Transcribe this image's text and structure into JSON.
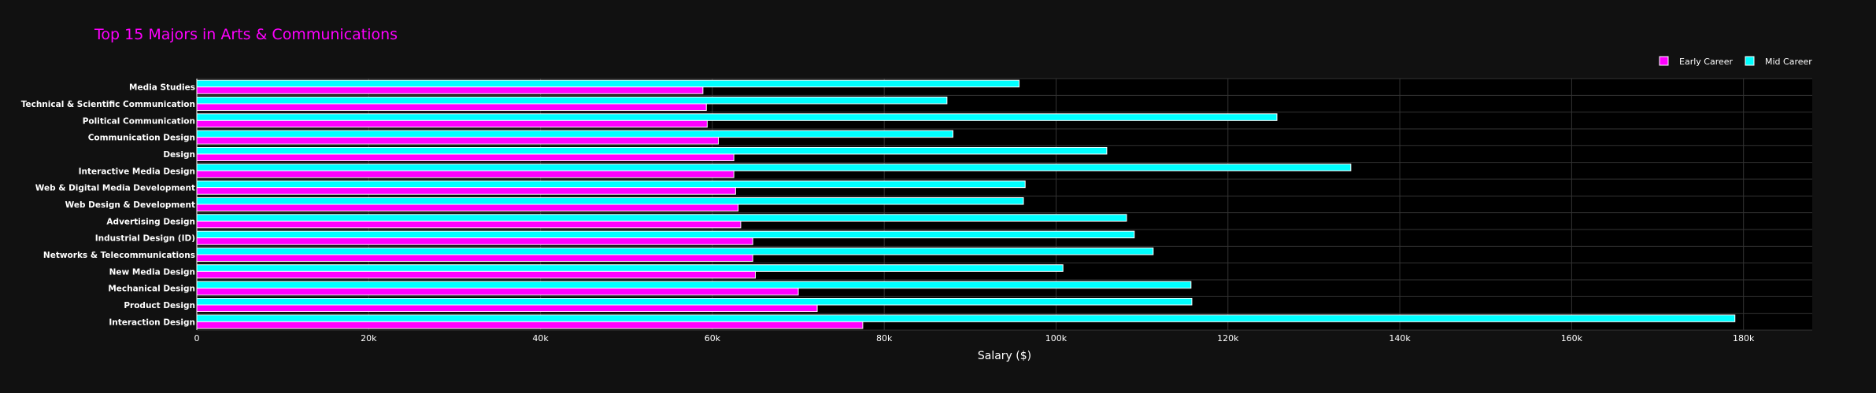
{
  "chart_data": {
    "type": "bar",
    "orientation": "horizontal",
    "title": "Top 15 Majors in Arts & Communications",
    "xlabel": "Salary ($)",
    "ylabel": "",
    "xlim": [
      0,
      188000
    ],
    "x_ticks": [
      0,
      20000,
      40000,
      60000,
      80000,
      100000,
      120000,
      140000,
      160000,
      180000
    ],
    "x_tick_labels": [
      "0",
      "20k",
      "40k",
      "60k",
      "80k",
      "100k",
      "120k",
      "140k",
      "160k",
      "180k"
    ],
    "grid": true,
    "legend_position": "top-right",
    "categories": [
      "Media Studies",
      "Technical & Scientific Communication",
      "Political Communication",
      "Communication Design",
      "Design",
      "Interactive Media Design",
      "Web & Digital Media Development",
      "Web Design & Development",
      "Advertising Design",
      "Industrial Design (ID)",
      "Networks & Telecommunications",
      "New Media Design",
      "Mechanical Design",
      "Product Design",
      "Interaction Design"
    ],
    "series": [
      {
        "name": "Early Career",
        "color": "#ff00ff",
        "values": [
          58900,
          59300,
          59400,
          60700,
          62500,
          62500,
          62700,
          63000,
          63300,
          64700,
          64700,
          65000,
          70000,
          72200,
          77500
        ]
      },
      {
        "name": "Mid Career",
        "color": "#00ffff",
        "values": [
          95700,
          87300,
          125700,
          88000,
          105900,
          134300,
          96400,
          96200,
          108200,
          109100,
          111300,
          100800,
          115700,
          115800,
          179000
        ]
      }
    ]
  },
  "colors": {
    "background": "#111111",
    "plot_background": "#000000",
    "grid": "#333333",
    "title": "#ff00ff",
    "text": "#ffffff",
    "bar_outline": "#ffffff"
  }
}
